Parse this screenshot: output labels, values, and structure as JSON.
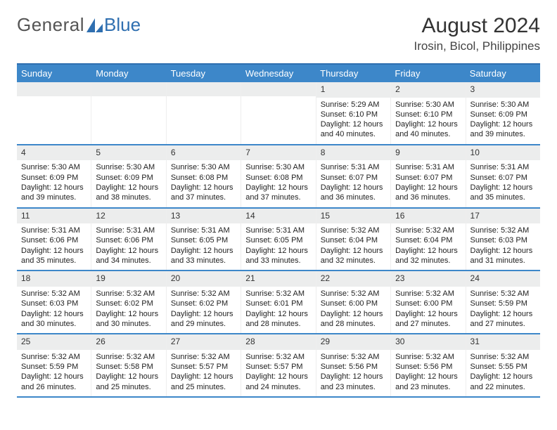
{
  "logo": {
    "general": "General",
    "blue": "Blue"
  },
  "title": "August 2024",
  "location": "Irosin, Bicol, Philippines",
  "colors": {
    "brand": "#3d87c9",
    "rule": "#2f6fb0",
    "daybg": "#eceded"
  },
  "dayHeaders": [
    "Sunday",
    "Monday",
    "Tuesday",
    "Wednesday",
    "Thursday",
    "Friday",
    "Saturday"
  ],
  "weeks": [
    [
      null,
      null,
      null,
      null,
      {
        "n": "1",
        "sr": "5:29 AM",
        "ss": "6:10 PM",
        "dl": "12 hours and 40 minutes."
      },
      {
        "n": "2",
        "sr": "5:30 AM",
        "ss": "6:10 PM",
        "dl": "12 hours and 40 minutes."
      },
      {
        "n": "3",
        "sr": "5:30 AM",
        "ss": "6:09 PM",
        "dl": "12 hours and 39 minutes."
      }
    ],
    [
      {
        "n": "4",
        "sr": "5:30 AM",
        "ss": "6:09 PM",
        "dl": "12 hours and 39 minutes."
      },
      {
        "n": "5",
        "sr": "5:30 AM",
        "ss": "6:09 PM",
        "dl": "12 hours and 38 minutes."
      },
      {
        "n": "6",
        "sr": "5:30 AM",
        "ss": "6:08 PM",
        "dl": "12 hours and 37 minutes."
      },
      {
        "n": "7",
        "sr": "5:30 AM",
        "ss": "6:08 PM",
        "dl": "12 hours and 37 minutes."
      },
      {
        "n": "8",
        "sr": "5:31 AM",
        "ss": "6:07 PM",
        "dl": "12 hours and 36 minutes."
      },
      {
        "n": "9",
        "sr": "5:31 AM",
        "ss": "6:07 PM",
        "dl": "12 hours and 36 minutes."
      },
      {
        "n": "10",
        "sr": "5:31 AM",
        "ss": "6:07 PM",
        "dl": "12 hours and 35 minutes."
      }
    ],
    [
      {
        "n": "11",
        "sr": "5:31 AM",
        "ss": "6:06 PM",
        "dl": "12 hours and 35 minutes."
      },
      {
        "n": "12",
        "sr": "5:31 AM",
        "ss": "6:06 PM",
        "dl": "12 hours and 34 minutes."
      },
      {
        "n": "13",
        "sr": "5:31 AM",
        "ss": "6:05 PM",
        "dl": "12 hours and 33 minutes."
      },
      {
        "n": "14",
        "sr": "5:31 AM",
        "ss": "6:05 PM",
        "dl": "12 hours and 33 minutes."
      },
      {
        "n": "15",
        "sr": "5:32 AM",
        "ss": "6:04 PM",
        "dl": "12 hours and 32 minutes."
      },
      {
        "n": "16",
        "sr": "5:32 AM",
        "ss": "6:04 PM",
        "dl": "12 hours and 32 minutes."
      },
      {
        "n": "17",
        "sr": "5:32 AM",
        "ss": "6:03 PM",
        "dl": "12 hours and 31 minutes."
      }
    ],
    [
      {
        "n": "18",
        "sr": "5:32 AM",
        "ss": "6:03 PM",
        "dl": "12 hours and 30 minutes."
      },
      {
        "n": "19",
        "sr": "5:32 AM",
        "ss": "6:02 PM",
        "dl": "12 hours and 30 minutes."
      },
      {
        "n": "20",
        "sr": "5:32 AM",
        "ss": "6:02 PM",
        "dl": "12 hours and 29 minutes."
      },
      {
        "n": "21",
        "sr": "5:32 AM",
        "ss": "6:01 PM",
        "dl": "12 hours and 28 minutes."
      },
      {
        "n": "22",
        "sr": "5:32 AM",
        "ss": "6:00 PM",
        "dl": "12 hours and 28 minutes."
      },
      {
        "n": "23",
        "sr": "5:32 AM",
        "ss": "6:00 PM",
        "dl": "12 hours and 27 minutes."
      },
      {
        "n": "24",
        "sr": "5:32 AM",
        "ss": "5:59 PM",
        "dl": "12 hours and 27 minutes."
      }
    ],
    [
      {
        "n": "25",
        "sr": "5:32 AM",
        "ss": "5:59 PM",
        "dl": "12 hours and 26 minutes."
      },
      {
        "n": "26",
        "sr": "5:32 AM",
        "ss": "5:58 PM",
        "dl": "12 hours and 25 minutes."
      },
      {
        "n": "27",
        "sr": "5:32 AM",
        "ss": "5:57 PM",
        "dl": "12 hours and 25 minutes."
      },
      {
        "n": "28",
        "sr": "5:32 AM",
        "ss": "5:57 PM",
        "dl": "12 hours and 24 minutes."
      },
      {
        "n": "29",
        "sr": "5:32 AM",
        "ss": "5:56 PM",
        "dl": "12 hours and 23 minutes."
      },
      {
        "n": "30",
        "sr": "5:32 AM",
        "ss": "5:56 PM",
        "dl": "12 hours and 23 minutes."
      },
      {
        "n": "31",
        "sr": "5:32 AM",
        "ss": "5:55 PM",
        "dl": "12 hours and 22 minutes."
      }
    ]
  ],
  "labels": {
    "sunrise": "Sunrise: ",
    "sunset": "Sunset: ",
    "daylight": "Daylight: "
  }
}
